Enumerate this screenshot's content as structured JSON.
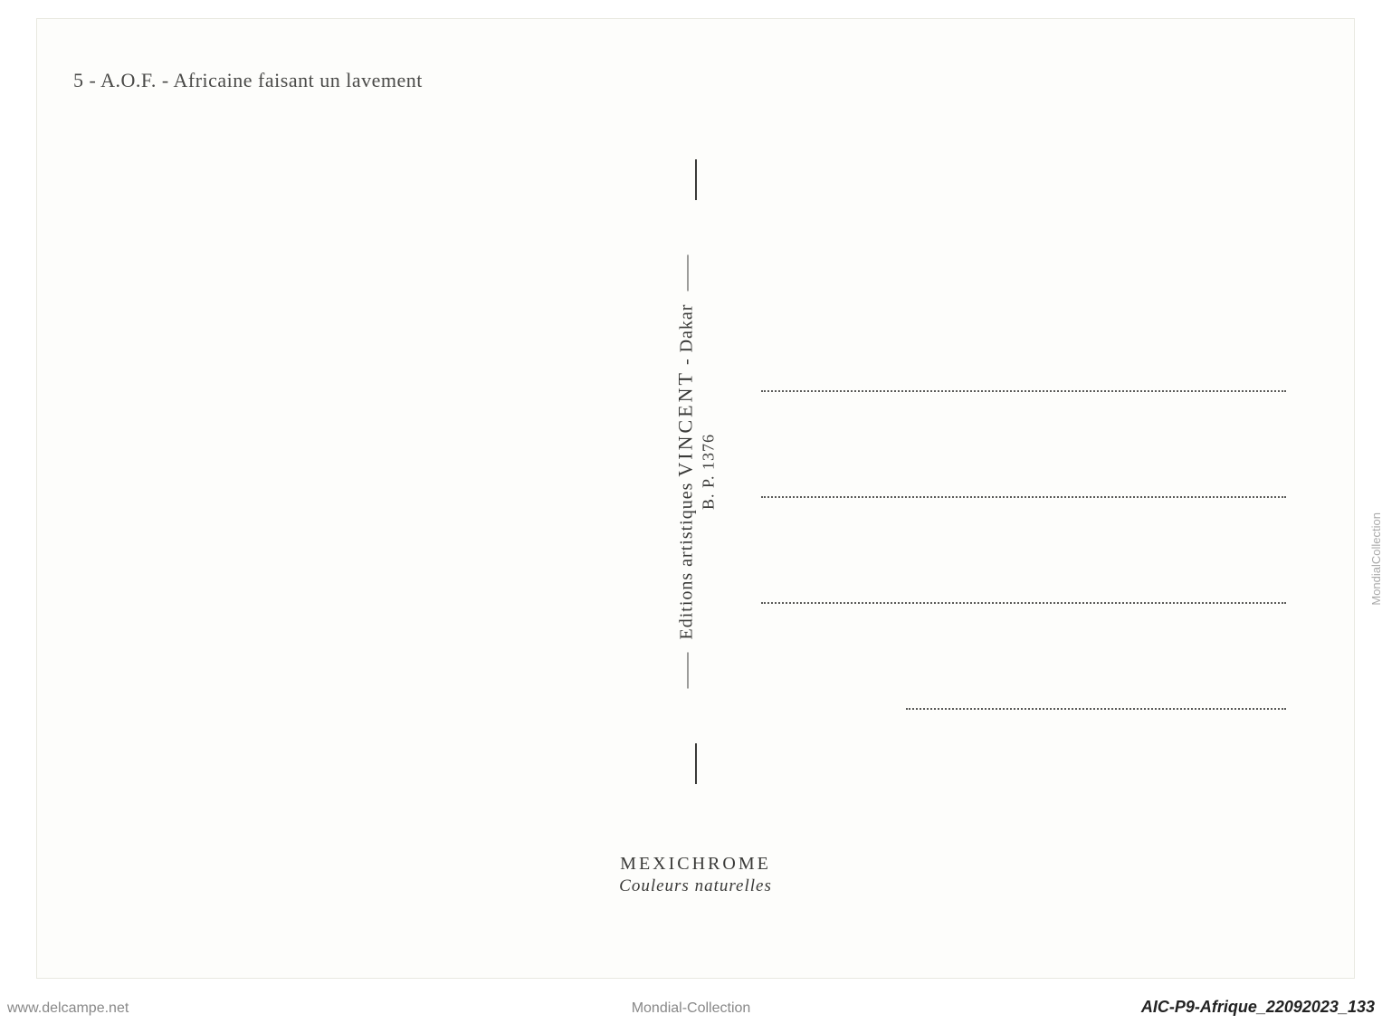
{
  "postcard": {
    "title": {
      "number": "5",
      "separator1": " - ",
      "abbr": "A.O.F.",
      "separator2": " - ",
      "description": "Africaine faisant un lavement"
    },
    "publisher": {
      "line1_prefix": "Editions   artistiques   ",
      "line1_name": "VINCENT",
      "line1_suffix": "  -  Dakar",
      "line2": "B.  P.  1376"
    },
    "bottom": {
      "brand": "MEXICHROME",
      "tagline": "Couleurs   naturelles"
    },
    "colors": {
      "background": "#fdfdfb",
      "text": "#3a3a38",
      "title_text": "#4a4a48",
      "dotted_line": "#5a5a58",
      "border": "#e8e8e0"
    },
    "typography": {
      "title_fontsize": 22,
      "publisher_fontsize": 20,
      "publisher_name_fontsize": 22,
      "bottom_brand_fontsize": 20,
      "bottom_tagline_fontsize": 19
    },
    "layout": {
      "address_line_count": 4,
      "address_line_spacing": 115,
      "vertical_text_rotation": -90
    }
  },
  "watermarks": {
    "bottom_left": "www.delcampe.net",
    "bottom_center": "Mondial-Collection",
    "bottom_right": "AIC-P9-Afrique_22092023_133",
    "side_right": "MondialCollection"
  }
}
